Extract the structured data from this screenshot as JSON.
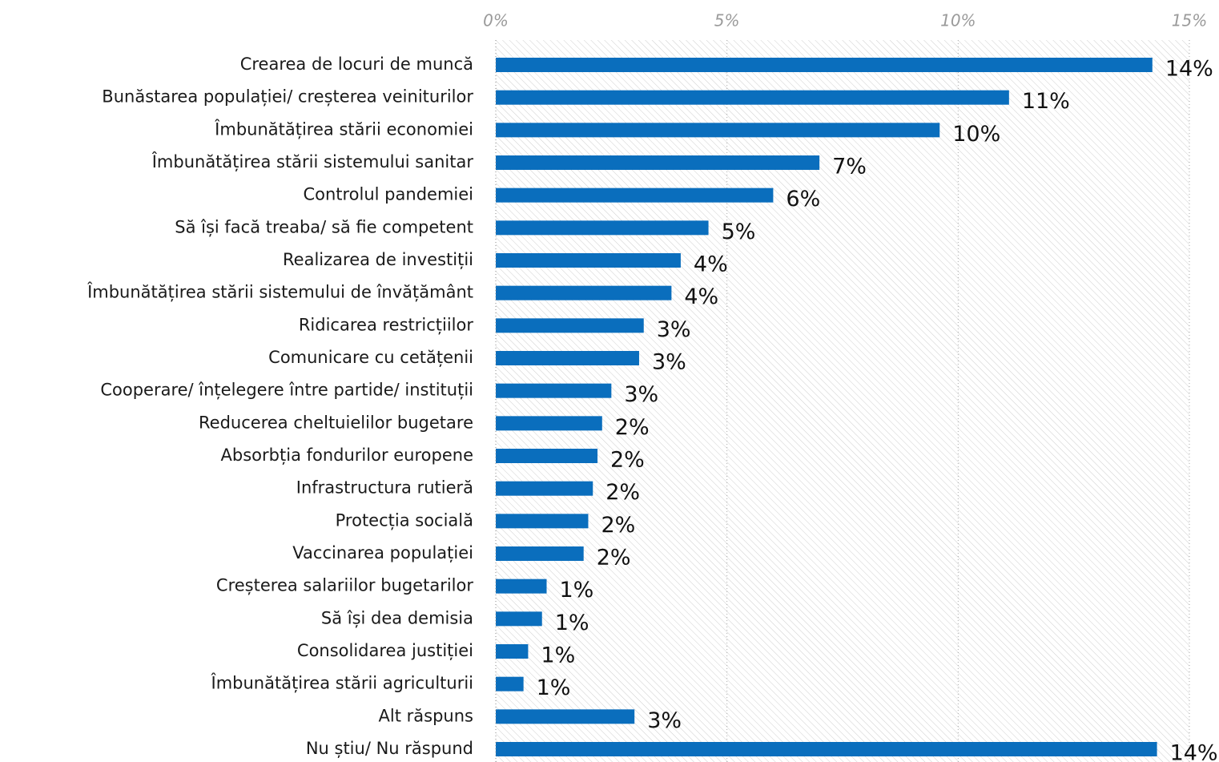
{
  "chart_data": {
    "type": "bar",
    "orientation": "horizontal",
    "color": "#0a6ebd",
    "categories": [
      "Crearea de locuri de muncă",
      "Bunăstarea populației/ creșterea veiniturilor",
      "Îmbunătățirea stării economiei",
      "Îmbunătățirea stării sistemului sanitar",
      "Controlul pandemiei",
      "Să își facă treaba/ să fie competent",
      "Realizarea de investiții",
      "Îmbunătățirea stării sistemului de învățământ",
      "Ridicarea restricțiilor",
      "Comunicare cu cetățenii",
      "Cooperare/ înțelegere între partide/ instituții",
      "Reducerea cheltuielilor bugetare",
      "Absorbția fondurilor europene",
      "Infrastructura rutieră",
      "Protecția socială",
      "Vaccinarea populației",
      "Creșterea salariilor bugetarilor",
      "Să își dea demisia",
      "Consolidarea justiției",
      "Îmbunătățirea stării agriculturii",
      "Alt răspuns",
      "Nu știu/ Nu răspund"
    ],
    "values": [
      14.2,
      11.1,
      9.6,
      7.0,
      6.0,
      4.6,
      4.0,
      3.8,
      3.2,
      3.1,
      2.5,
      2.3,
      2.2,
      2.1,
      2.0,
      1.9,
      1.1,
      1.0,
      0.7,
      0.6,
      3.0,
      14.3
    ],
    "value_labels": [
      "14%",
      "11%",
      "10%",
      "7%",
      "6%",
      "5%",
      "4%",
      "4%",
      "3%",
      "3%",
      "3%",
      "2%",
      "2%",
      "2%",
      "2%",
      "2%",
      "1%",
      "1%",
      "1%",
      "1%",
      "3%",
      "14%"
    ],
    "xlim": [
      0,
      15
    ],
    "xticks": [
      {
        "value": 0,
        "label": "0%"
      },
      {
        "value": 5,
        "label": "5%"
      },
      {
        "value": 10,
        "label": "10%"
      },
      {
        "value": 15,
        "label": "15%"
      }
    ],
    "grid": true
  }
}
